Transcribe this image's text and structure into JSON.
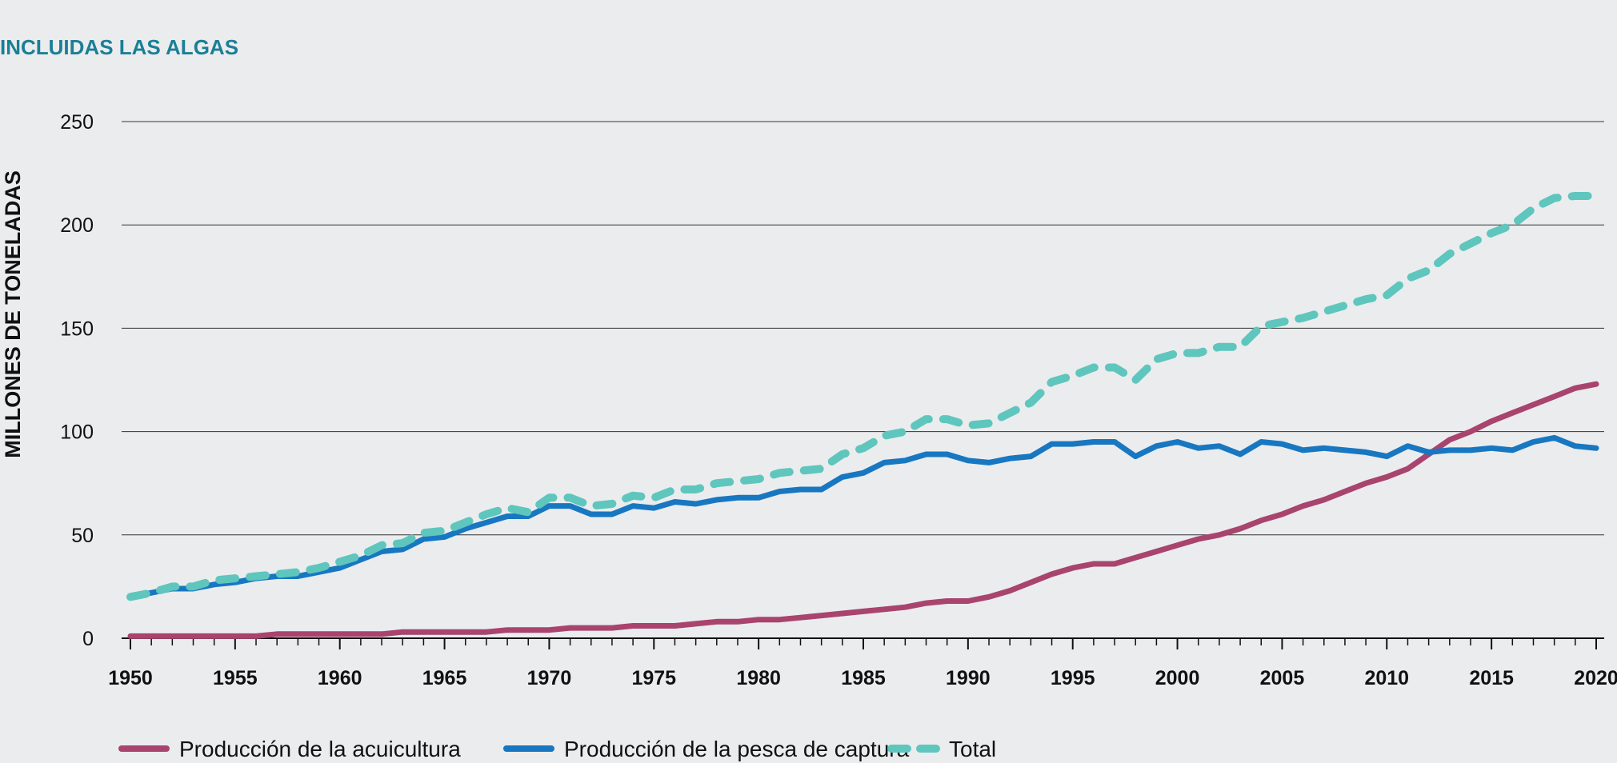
{
  "chart_data": {
    "type": "line",
    "title": "INCLUIDAS LAS ALGAS",
    "ylabel": "MILLONES DE TONELADAS",
    "xlabel": "",
    "xlim": [
      1950,
      2020
    ],
    "ylim": [
      0,
      250
    ],
    "yticks": [
      0,
      50,
      100,
      150,
      200,
      250
    ],
    "xticks": [
      1950,
      1955,
      1960,
      1965,
      1970,
      1975,
      1980,
      1985,
      1990,
      1995,
      2000,
      2005,
      2010,
      2015,
      2020
    ],
    "grid": "horizontal",
    "legend_position": "bottom-left",
    "x": [
      1950,
      1951,
      1952,
      1953,
      1954,
      1955,
      1956,
      1957,
      1958,
      1959,
      1960,
      1961,
      1962,
      1963,
      1964,
      1965,
      1966,
      1967,
      1968,
      1969,
      1970,
      1971,
      1972,
      1973,
      1974,
      1975,
      1976,
      1977,
      1978,
      1979,
      1980,
      1981,
      1982,
      1983,
      1984,
      1985,
      1986,
      1987,
      1988,
      1989,
      1990,
      1991,
      1992,
      1993,
      1994,
      1995,
      1996,
      1997,
      1998,
      1999,
      2000,
      2001,
      2002,
      2003,
      2004,
      2005,
      2006,
      2007,
      2008,
      2009,
      2010,
      2011,
      2012,
      2013,
      2014,
      2015,
      2016,
      2017,
      2018,
      2019,
      2020
    ],
    "series": [
      {
        "name": "Producción de la acuicultura",
        "color": "#a8446e",
        "style": "solid",
        "values": [
          1,
          1,
          1,
          1,
          1,
          1,
          1,
          2,
          2,
          2,
          2,
          2,
          2,
          3,
          3,
          3,
          3,
          3,
          4,
          4,
          4,
          5,
          5,
          5,
          6,
          6,
          6,
          7,
          8,
          8,
          9,
          9,
          10,
          11,
          12,
          13,
          14,
          15,
          17,
          18,
          18,
          20,
          23,
          27,
          31,
          34,
          36,
          36,
          39,
          42,
          45,
          48,
          50,
          53,
          57,
          60,
          64,
          67,
          71,
          75,
          78,
          82,
          89,
          96,
          100,
          105,
          109,
          113,
          117,
          121,
          123
        ]
      },
      {
        "name": "Producción de la pesca de captura",
        "color": "#1877c1",
        "style": "solid",
        "values": [
          20,
          22,
          24,
          24,
          26,
          27,
          29,
          30,
          30,
          32,
          34,
          38,
          42,
          43,
          48,
          49,
          53,
          56,
          59,
          59,
          64,
          64,
          60,
          60,
          64,
          63,
          66,
          65,
          67,
          68,
          68,
          71,
          72,
          72,
          78,
          80,
          85,
          86,
          89,
          89,
          86,
          85,
          87,
          88,
          94,
          94,
          95,
          95,
          88,
          93,
          95,
          92,
          93,
          89,
          95,
          94,
          91,
          92,
          91,
          90,
          88,
          93,
          90,
          91,
          91,
          92,
          91,
          95,
          97,
          93,
          92
        ]
      },
      {
        "name": "Total",
        "color": "#5ec6bd",
        "style": "dashed",
        "values": [
          20,
          22,
          25,
          25,
          28,
          29,
          30,
          31,
          32,
          34,
          37,
          40,
          45,
          46,
          51,
          52,
          56,
          60,
          63,
          61,
          68,
          68,
          64,
          65,
          69,
          68,
          72,
          72,
          75,
          76,
          77,
          80,
          81,
          82,
          89,
          92,
          98,
          100,
          106,
          106,
          103,
          104,
          109,
          114,
          124,
          127,
          131,
          131,
          125,
          135,
          138,
          138,
          141,
          141,
          151,
          153,
          155,
          158,
          161,
          164,
          166,
          174,
          178,
          186,
          191,
          196,
          200,
          208,
          213,
          214,
          214
        ]
      }
    ]
  }
}
